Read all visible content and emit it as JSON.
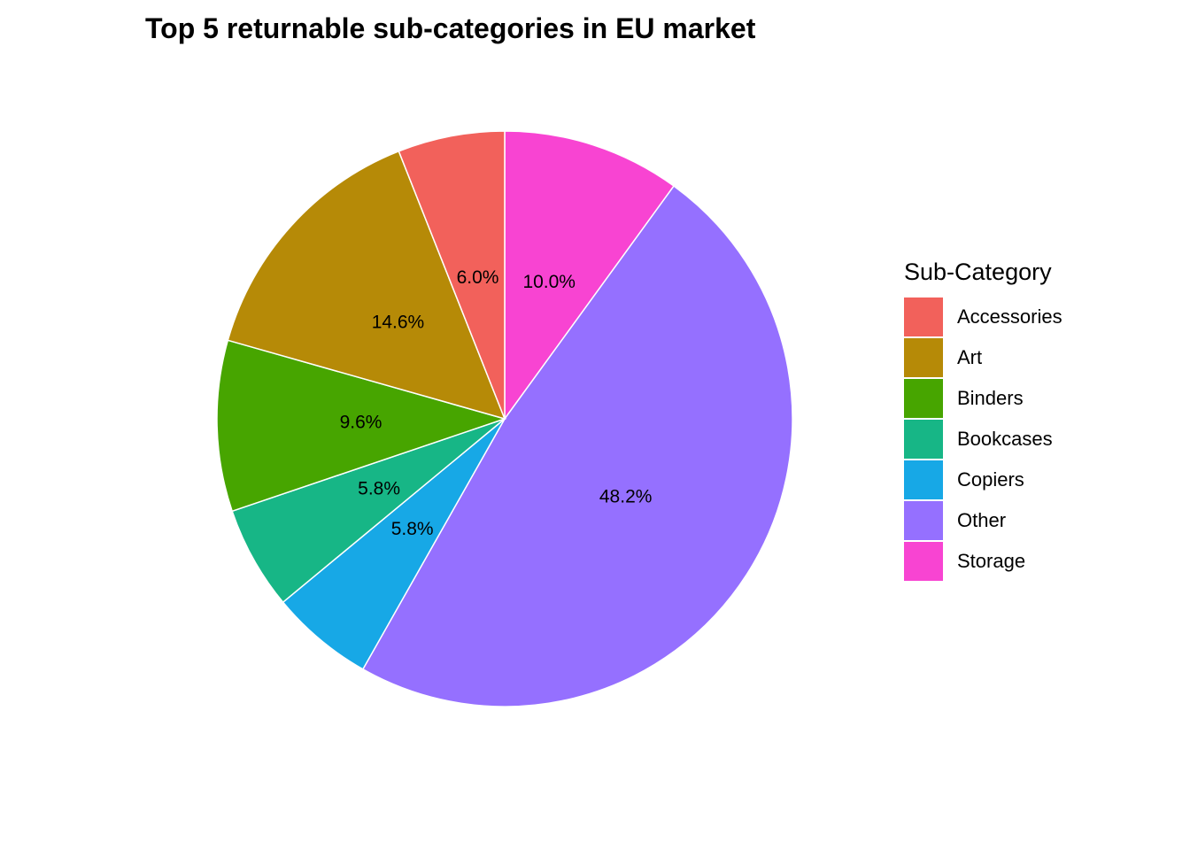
{
  "chart_data": {
    "type": "pie",
    "title": "Top 5 returnable sub-categories in EU market",
    "legend_title": "Sub-Category",
    "legend_position": "right",
    "direction": "counterclockwise",
    "start_angle_deg": 0,
    "slices": [
      {
        "name": "Storage",
        "value": 10.0,
        "label": "10.0%",
        "color": "#F844D2"
      },
      {
        "name": "Other",
        "value": 48.2,
        "label": "48.2%",
        "color": "#9570FF"
      },
      {
        "name": "Copiers",
        "value": 5.8,
        "label": "5.8%",
        "color": "#17A8E6"
      },
      {
        "name": "Bookcases",
        "value": 5.8,
        "label": "5.8%",
        "color": "#17B686"
      },
      {
        "name": "Binders",
        "value": 9.6,
        "label": "9.6%",
        "color": "#47A500"
      },
      {
        "name": "Art",
        "value": 14.6,
        "label": "14.6%",
        "color": "#B68A07"
      },
      {
        "name": "Accessories",
        "value": 6.0,
        "label": "6.0%",
        "color": "#F2615B"
      }
    ],
    "legend_order": [
      "Accessories",
      "Art",
      "Binders",
      "Bookcases",
      "Copiers",
      "Other",
      "Storage"
    ]
  }
}
